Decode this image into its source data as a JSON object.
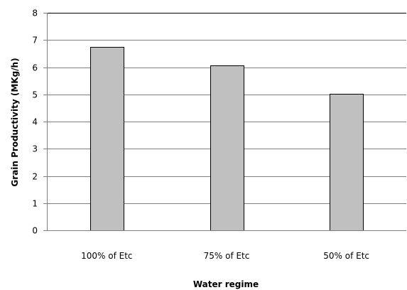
{
  "chart_data": {
    "type": "bar",
    "categories": [
      "100% of Etc",
      "75% of Etc",
      "50% of Etc"
    ],
    "values": [
      6.75,
      6.07,
      5.03
    ],
    "xlabel": "Water regime",
    "ylabel": "Grain Productivity  (MKg/h)",
    "ylim": [
      0,
      8
    ],
    "yticks": [
      0,
      1,
      2,
      3,
      4,
      5,
      6,
      7,
      8
    ],
    "grid": true,
    "legend": "none",
    "bar_color": "#c0c0c0",
    "bar_edge_color": "#000000",
    "grid_color": "#808080"
  }
}
